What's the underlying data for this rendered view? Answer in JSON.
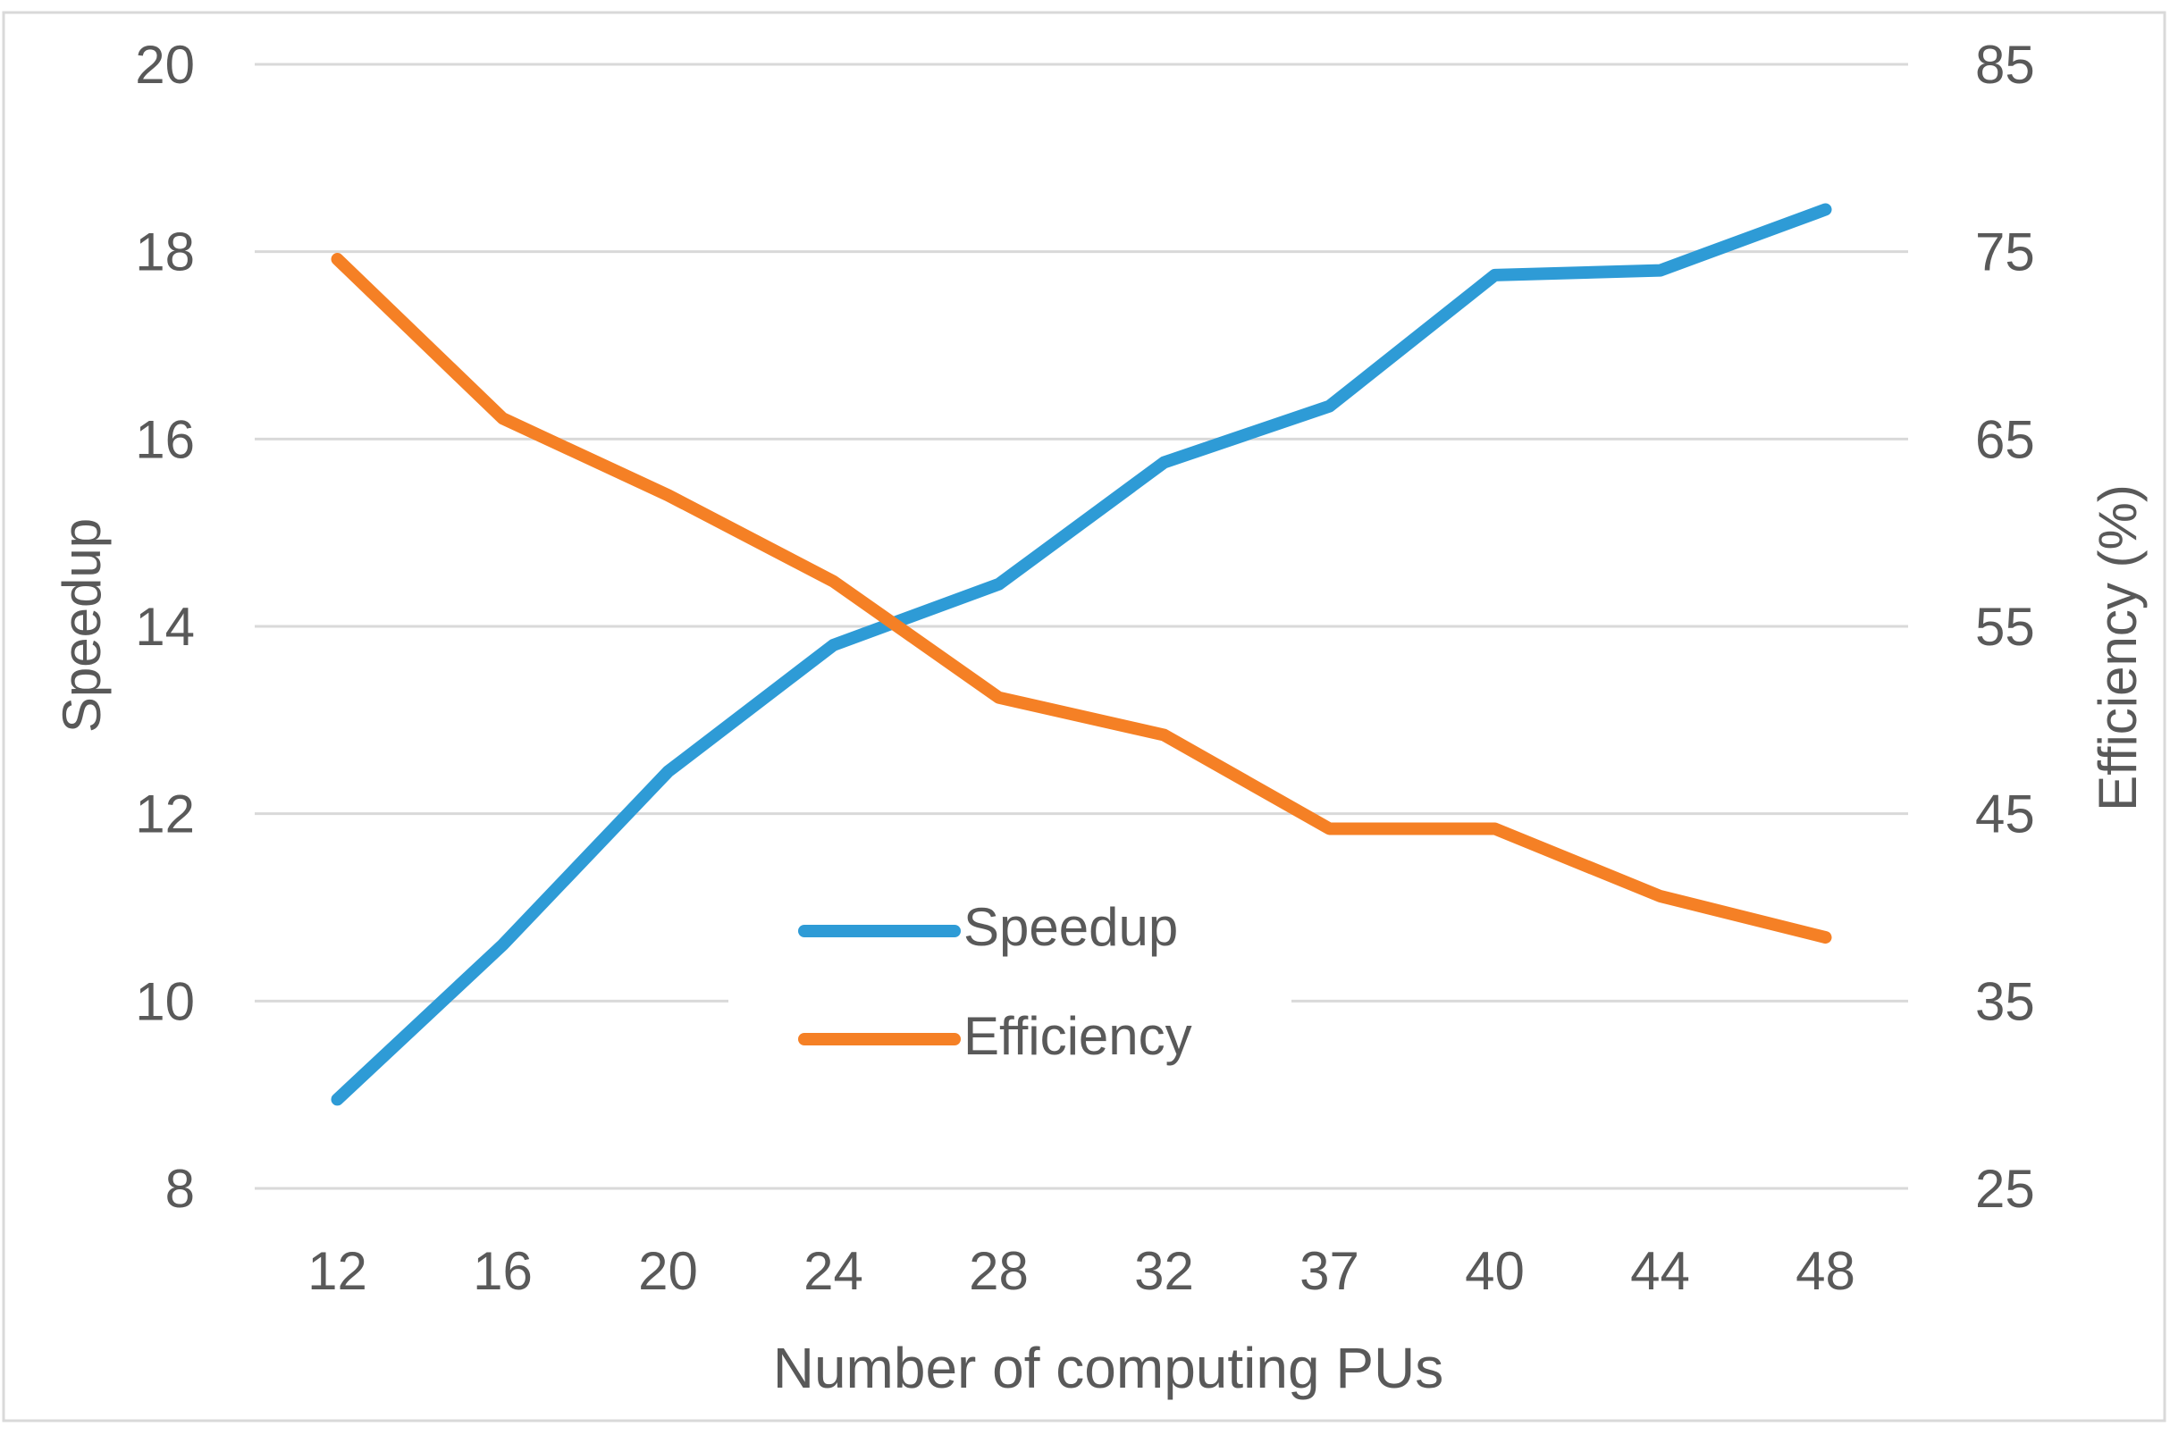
{
  "chart_data": {
    "type": "line",
    "title": "",
    "categories": [
      "12",
      "16",
      "20",
      "24",
      "28",
      "32",
      "37",
      "40",
      "44",
      "48"
    ],
    "series": [
      {
        "name": "Speedup",
        "axis": "left",
        "color": "#2e9bd6",
        "values": [
          8.95,
          10.6,
          12.45,
          13.8,
          14.45,
          15.75,
          16.35,
          17.75,
          17.8,
          18.45
        ]
      },
      {
        "name": "Efficiency",
        "axis": "right",
        "color": "#f58025",
        "values": [
          74.6,
          66.1,
          62.0,
          57.4,
          51.2,
          49.2,
          44.2,
          44.2,
          40.6,
          38.4
        ]
      }
    ],
    "xlabel": "Number  of computing PUs",
    "ylabel": "Speedup",
    "y2label": "Efficiency (%)",
    "ylim": [
      8,
      20
    ],
    "y2lim": [
      25,
      85
    ],
    "yticks": [
      "8",
      "10",
      "12",
      "14",
      "16",
      "18",
      "20"
    ],
    "y2ticks": [
      "25",
      "35",
      "45",
      "55",
      "65",
      "75",
      "85"
    ],
    "grid": true,
    "legend": {
      "position": "center-bottom",
      "entries": [
        "Speedup",
        "Efficiency"
      ]
    }
  }
}
